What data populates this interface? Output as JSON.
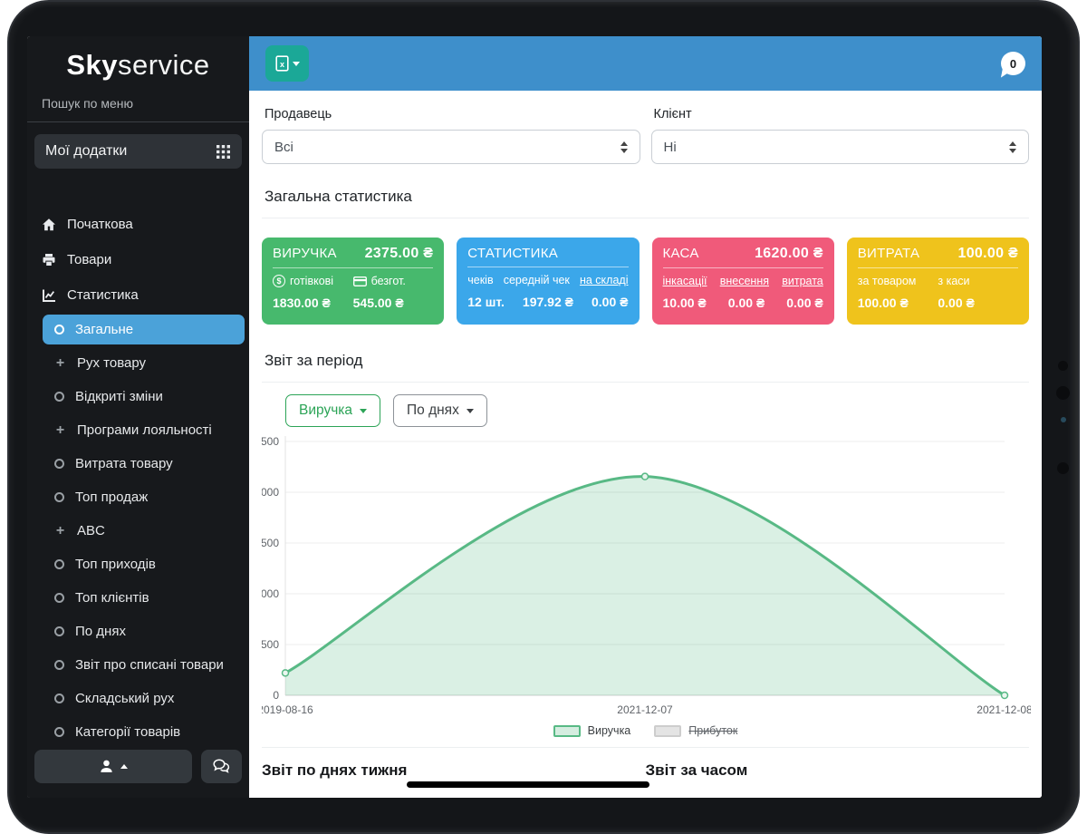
{
  "theme": {
    "topbar_blue": "#3e8fcb",
    "active_item_blue": "#4ba2d9",
    "export_teal": "#1ba897",
    "success_green": "#2ca457",
    "sidebar_bg": "#17191c"
  },
  "sidebar": {
    "logo_bold": "Sky",
    "logo_light": "service",
    "search_placeholder": "Пошук по меню",
    "apps_label": "Мої додатки",
    "items": [
      {
        "label": "Початкова",
        "icon": "home"
      },
      {
        "label": "Товари",
        "icon": "goods"
      },
      {
        "label": "Статистика",
        "icon": "chart"
      }
    ],
    "subitems": [
      {
        "label": "Загальне",
        "icon": "circle",
        "active": true
      },
      {
        "label": "Рух товару",
        "icon": "plus"
      },
      {
        "label": "Відкриті зміни",
        "icon": "circle"
      },
      {
        "label": "Програми лояльності",
        "icon": "plus"
      },
      {
        "label": "Витрата товару",
        "icon": "circle"
      },
      {
        "label": "Топ продаж",
        "icon": "circle"
      },
      {
        "label": "ABC",
        "icon": "plus"
      },
      {
        "label": "Топ приходів",
        "icon": "circle"
      },
      {
        "label": "Топ клієнтів",
        "icon": "circle"
      },
      {
        "label": "По днях",
        "icon": "circle"
      },
      {
        "label": "Звіт про списані товари",
        "icon": "circle"
      },
      {
        "label": "Складський рух",
        "icon": "circle"
      },
      {
        "label": "Категорії товарів",
        "icon": "circle"
      }
    ]
  },
  "topbar": {
    "notification_count": "0"
  },
  "filters": {
    "seller_label": "Продавець",
    "seller_value": "Всі",
    "client_label": "Клієнт",
    "client_value": "Ні"
  },
  "stats": {
    "heading": "Загальна статистика",
    "cards": [
      {
        "title": "ВИРУЧКА",
        "total": "2375.00 ₴",
        "color": "#47b96d",
        "cols": [
          {
            "label": "готівкові",
            "icon": "coin",
            "value": "1830.00 ₴"
          },
          {
            "label": "безгот.",
            "icon": "card",
            "value": "545.00 ₴"
          }
        ]
      },
      {
        "title": "СТАТИСТИКА",
        "total": "",
        "color": "#3ba7ea",
        "cols": [
          {
            "label": "чеків",
            "value": "12 шт."
          },
          {
            "label": "середній чек",
            "value": "197.92 ₴"
          },
          {
            "label": "на складі",
            "link": true,
            "value": "0.00 ₴"
          }
        ]
      },
      {
        "title": "КАСА",
        "total": "1620.00 ₴",
        "color": "#f05a7a",
        "cols": [
          {
            "label": "інкасації",
            "link": true,
            "value": "10.00 ₴"
          },
          {
            "label": "внесення",
            "link": true,
            "value": "0.00 ₴"
          },
          {
            "label": "витрата",
            "link": true,
            "value": "0.00 ₴"
          }
        ]
      },
      {
        "title": "ВИТРАТА",
        "total": "100.00 ₴",
        "color": "#efc31c",
        "cols": [
          {
            "label": "за товаром",
            "value": "100.00 ₴"
          },
          {
            "label": "з каси",
            "value": "0.00 ₴"
          }
        ]
      }
    ]
  },
  "period": {
    "heading": "Звіт за період",
    "metric_button": "Виручка",
    "grouping_button": "По днях"
  },
  "chart_data": {
    "type": "area",
    "title": "Звіт за період",
    "x": [
      "2019-08-16",
      "2021-12-07",
      "2021-12-08"
    ],
    "series": [
      {
        "name": "Виручка",
        "values": [
          220,
          2155,
          0
        ],
        "color": "#58b985",
        "fill_opacity": 0.22,
        "hidden": false
      },
      {
        "name": "Прибуток",
        "values": [],
        "color": "#d9d9d9",
        "hidden": true
      }
    ],
    "ylim": [
      0,
      2500
    ],
    "ytick_step": 500,
    "grid": true,
    "legend_position": "bottom"
  },
  "bottom": {
    "left_heading": "Звіт по днях тижня",
    "right_heading": "Звіт за часом"
  }
}
